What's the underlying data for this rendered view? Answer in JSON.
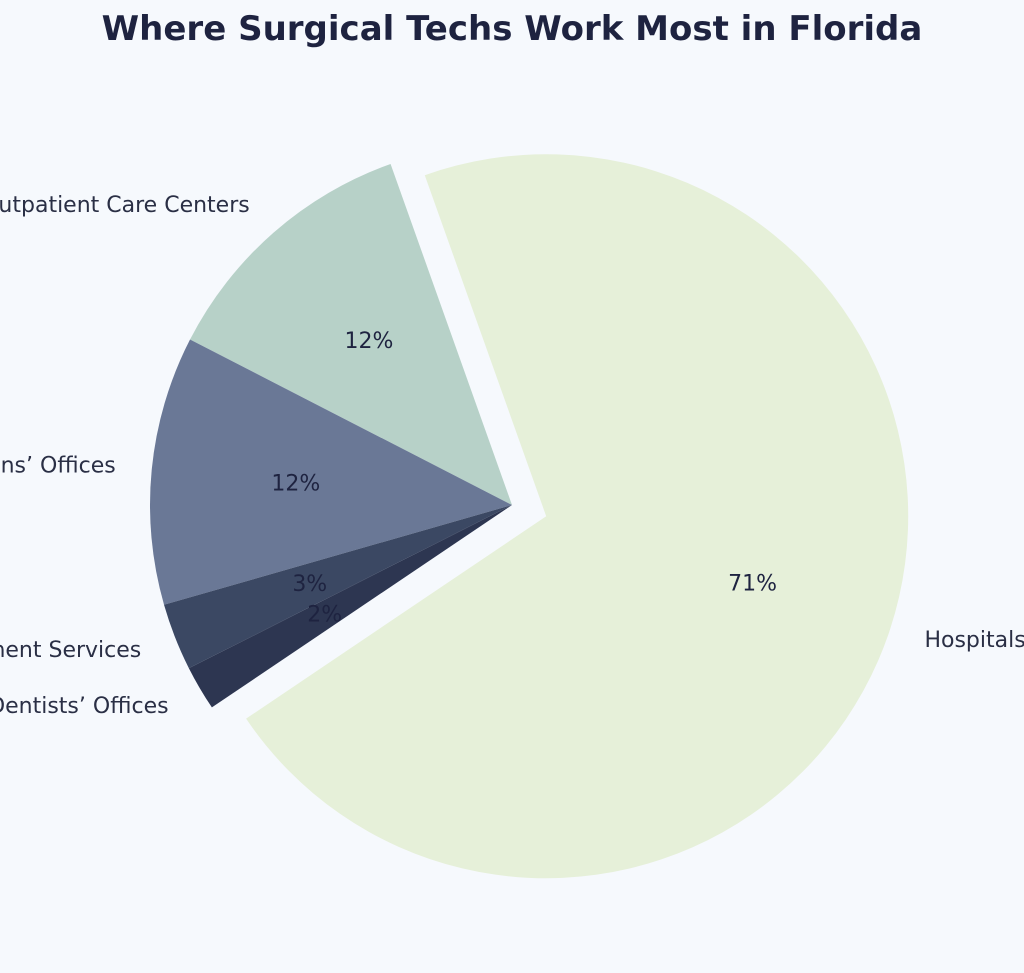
{
  "chart_data": {
    "type": "pie",
    "title": "Where Surgical Techs Work Most in Florida",
    "slices": [
      {
        "label": "Hospitals",
        "value": 71,
        "pct_label": "71%",
        "color": "#e6f0d9"
      },
      {
        "label": "Outpatient Care Centers",
        "value": 12,
        "pct_label": "12%",
        "color": "#b7d1c8"
      },
      {
        "label": "Physicians’ Offices",
        "value": 12,
        "pct_label": "12%",
        "color": "#6a7896"
      },
      {
        "label": "Employment Services",
        "value": 3,
        "pct_label": "3%",
        "color": "#3b4863"
      },
      {
        "label": "Dentists’ Offices",
        "value": 2,
        "pct_label": "2%",
        "color": "#2d3651"
      }
    ],
    "exploded": "Hospitals",
    "background": "#f6f9fd"
  }
}
